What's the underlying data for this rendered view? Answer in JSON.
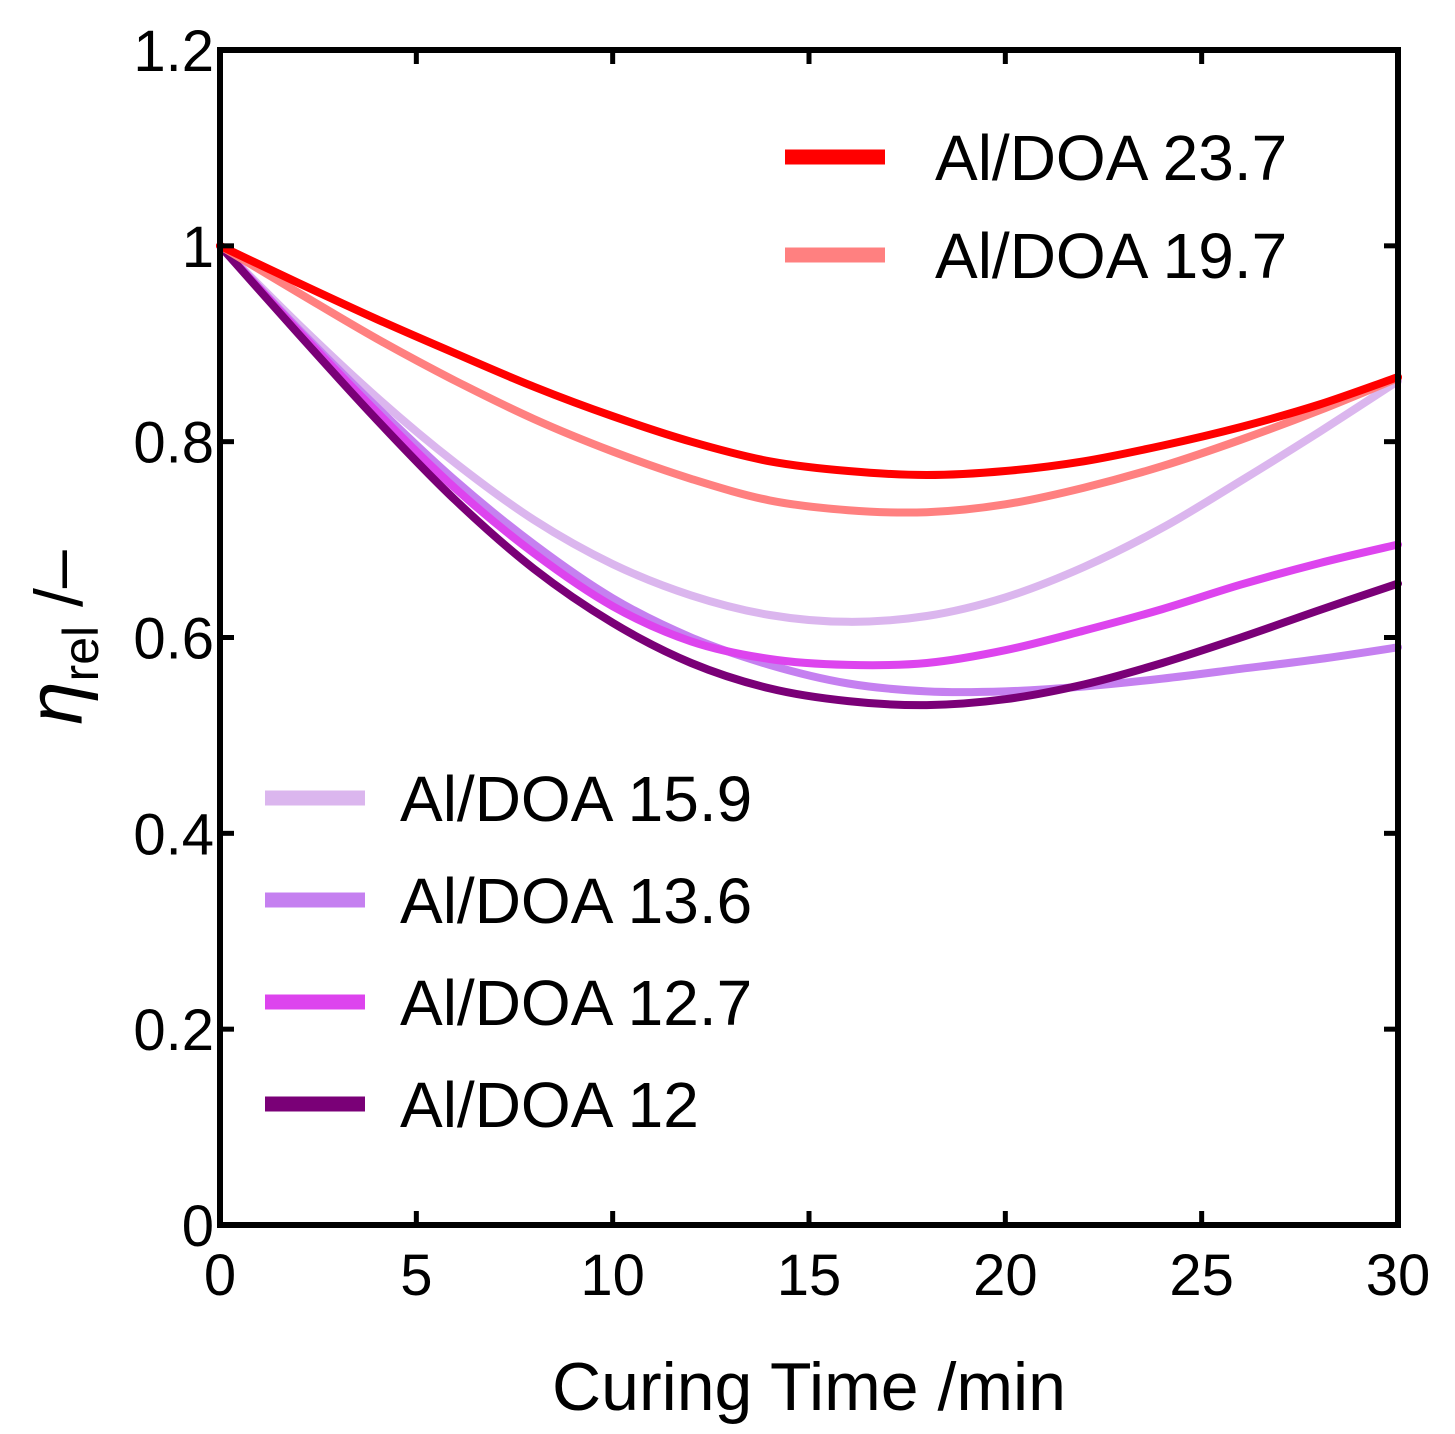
{
  "chart_data": {
    "type": "line",
    "title": "",
    "xlabel": "Curing Time /min",
    "ylabel": {
      "symbol": "η",
      "subscript": "rel",
      "unit": " /–"
    },
    "xlim": [
      0,
      30
    ],
    "ylim": [
      0,
      1.2
    ],
    "xticks": [
      0,
      5,
      10,
      15,
      20,
      25,
      30
    ],
    "xtick_labels": [
      "0",
      "5",
      "10",
      "15",
      "20",
      "25",
      "30"
    ],
    "yticks": [
      0,
      0.2,
      0.4,
      0.6,
      0.8,
      1.0,
      1.2
    ],
    "ytick_labels": [
      "0",
      "0.2",
      "0.4",
      "0.6",
      "0.8",
      "1",
      "1.2"
    ],
    "grid": false,
    "legends": [
      {
        "placement": "top-right",
        "series_indices": [
          0,
          1
        ]
      },
      {
        "placement": "lower-left",
        "series_indices": [
          2,
          3,
          4,
          5
        ]
      }
    ],
    "series": [
      {
        "name": "Al/DOA 23.7",
        "color": "#ff0000",
        "x": [
          0,
          2,
          4,
          6,
          8,
          10,
          12,
          14,
          16,
          18,
          20,
          22,
          24,
          26,
          28,
          30
        ],
        "y": [
          1.0,
          0.962,
          0.925,
          0.89,
          0.856,
          0.826,
          0.8,
          0.78,
          0.77,
          0.766,
          0.77,
          0.78,
          0.796,
          0.815,
          0.838,
          0.866
        ]
      },
      {
        "name": "Al/DOA 19.7",
        "color": "#ff8080",
        "x": [
          0,
          2,
          4,
          6,
          8,
          10,
          12,
          14,
          16,
          18,
          20,
          22,
          24,
          26,
          28,
          30
        ],
        "y": [
          1.0,
          0.952,
          0.905,
          0.862,
          0.823,
          0.79,
          0.762,
          0.74,
          0.73,
          0.728,
          0.736,
          0.753,
          0.775,
          0.802,
          0.832,
          0.865
        ]
      },
      {
        "name": "Al/DOA 15.9",
        "color": "#dbb6ee",
        "x": [
          0,
          2,
          4,
          6,
          8,
          10,
          12,
          14,
          16,
          18,
          20,
          22,
          24,
          26,
          28,
          30
        ],
        "y": [
          1.0,
          0.92,
          0.845,
          0.778,
          0.72,
          0.675,
          0.643,
          0.623,
          0.616,
          0.622,
          0.641,
          0.672,
          0.712,
          0.76,
          0.81,
          0.862
        ]
      },
      {
        "name": "Al/DOA 13.6",
        "color": "#c580f0",
        "x": [
          0,
          2,
          4,
          6,
          8,
          10,
          12,
          14,
          16,
          18,
          20,
          22,
          24,
          26,
          28,
          30
        ],
        "y": [
          1.0,
          0.915,
          0.835,
          0.76,
          0.695,
          0.64,
          0.6,
          0.572,
          0.553,
          0.545,
          0.545,
          0.55,
          0.558,
          0.568,
          0.578,
          0.59
        ]
      },
      {
        "name": "Al/DOA 12.7",
        "color": "#dd44ee",
        "x": [
          0,
          2,
          4,
          6,
          8,
          10,
          12,
          14,
          16,
          18,
          20,
          22,
          24,
          26,
          28,
          30
        ],
        "y": [
          1.0,
          0.913,
          0.83,
          0.752,
          0.686,
          0.632,
          0.596,
          0.578,
          0.572,
          0.574,
          0.587,
          0.607,
          0.629,
          0.654,
          0.676,
          0.695
        ]
      },
      {
        "name": "Al/DOA 12",
        "color": "#7a0077",
        "x": [
          0,
          2,
          4,
          6,
          8,
          10,
          12,
          14,
          16,
          18,
          20,
          22,
          24,
          26,
          28,
          30
        ],
        "y": [
          1.0,
          0.91,
          0.822,
          0.74,
          0.67,
          0.615,
          0.574,
          0.548,
          0.535,
          0.531,
          0.537,
          0.552,
          0.574,
          0.6,
          0.628,
          0.655
        ]
      }
    ]
  }
}
